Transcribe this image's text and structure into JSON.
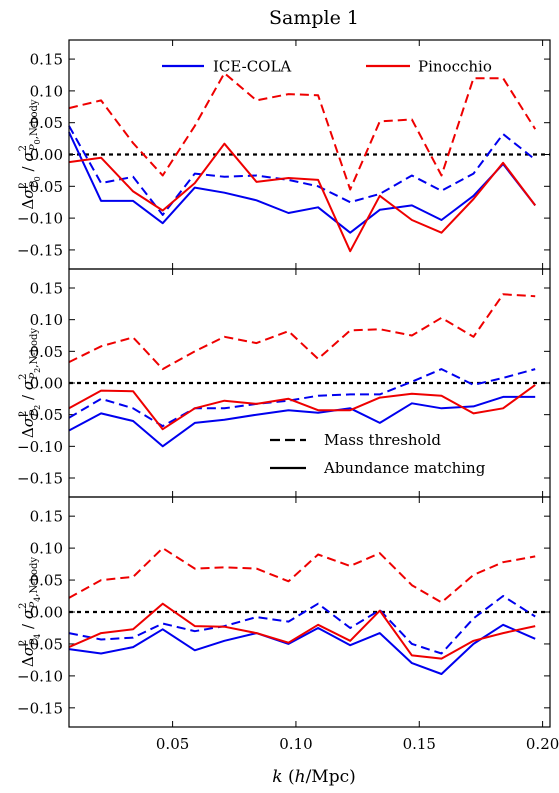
{
  "title": "Sample 1",
  "xlabel": "k (h/Mpc)",
  "legend_codes": [
    {
      "label": "ICE-COLA",
      "color": "#0000ee"
    },
    {
      "label": "Pinocchio",
      "color": "#ee0000"
    }
  ],
  "legend_methods": [
    {
      "label": "Mass threshold",
      "style": "dashed"
    },
    {
      "label": "Abundance matching",
      "style": "solid"
    }
  ],
  "chart_data": [
    {
      "type": "line",
      "ylabel": "Δσ²_{P0} / σ²_{P0,N-body}",
      "xlim": [
        0.008,
        0.203
      ],
      "ylim": [
        -0.18,
        0.18
      ],
      "xticks": [
        0.05,
        0.1,
        0.15,
        0.2
      ],
      "yticks": [
        -0.15,
        -0.1,
        -0.05,
        0.0,
        0.05,
        0.1,
        0.15
      ],
      "reference_line": 0.0,
      "x": [
        0.008,
        0.021,
        0.034,
        0.046,
        0.059,
        0.071,
        0.084,
        0.097,
        0.109,
        0.122,
        0.134,
        0.147,
        0.159,
        0.172,
        0.184,
        0.197
      ],
      "series": [
        {
          "name": "ICE-COLA Mass threshold",
          "color": "#0000ee",
          "style": "dashed",
          "values": [
            0.045,
            -0.045,
            -0.035,
            -0.095,
            -0.03,
            -0.035,
            -0.033,
            -0.04,
            -0.05,
            -0.075,
            -0.062,
            -0.033,
            -0.057,
            -0.03,
            0.032,
            -0.008
          ]
        },
        {
          "name": "ICE-COLA Abundance matching",
          "color": "#0000ee",
          "style": "solid",
          "values": [
            0.035,
            -0.073,
            -0.073,
            -0.108,
            -0.052,
            -0.06,
            -0.072,
            -0.092,
            -0.083,
            -0.123,
            -0.087,
            -0.08,
            -0.103,
            -0.065,
            -0.015,
            -0.08
          ]
        },
        {
          "name": "Pinocchio Mass threshold",
          "color": "#ee0000",
          "style": "dashed",
          "values": [
            0.073,
            0.085,
            0.018,
            -0.033,
            0.045,
            0.128,
            0.085,
            0.095,
            0.093,
            -0.055,
            0.052,
            0.055,
            -0.033,
            0.12,
            0.12,
            0.04
          ]
        },
        {
          "name": "Pinocchio Abundance matching",
          "color": "#ee0000",
          "style": "solid",
          "values": [
            -0.012,
            -0.005,
            -0.058,
            -0.088,
            -0.045,
            0.017,
            -0.043,
            -0.037,
            -0.04,
            -0.152,
            -0.065,
            -0.103,
            -0.123,
            -0.07,
            -0.013,
            -0.08
          ]
        }
      ]
    },
    {
      "type": "line",
      "ylabel": "Δσ²_{P2} / σ²_{P2,N-body}",
      "xlim": [
        0.008,
        0.203
      ],
      "ylim": [
        -0.18,
        0.18
      ],
      "xticks": [
        0.05,
        0.1,
        0.15,
        0.2
      ],
      "yticks": [
        -0.15,
        -0.1,
        -0.05,
        0.0,
        0.05,
        0.1,
        0.15
      ],
      "reference_line": 0.0,
      "x": [
        0.008,
        0.021,
        0.034,
        0.046,
        0.059,
        0.071,
        0.084,
        0.097,
        0.109,
        0.122,
        0.134,
        0.147,
        0.159,
        0.172,
        0.184,
        0.197
      ],
      "series": [
        {
          "name": "ICE-COLA Mass threshold",
          "color": "#0000ee",
          "style": "dashed",
          "values": [
            -0.055,
            -0.025,
            -0.04,
            -0.068,
            -0.04,
            -0.04,
            -0.033,
            -0.028,
            -0.02,
            -0.018,
            -0.018,
            0.002,
            0.022,
            -0.003,
            0.008,
            0.022
          ]
        },
        {
          "name": "ICE-COLA Abundance matching",
          "color": "#0000ee",
          "style": "solid",
          "values": [
            -0.075,
            -0.048,
            -0.06,
            -0.1,
            -0.063,
            -0.058,
            -0.05,
            -0.043,
            -0.047,
            -0.04,
            -0.063,
            -0.032,
            -0.04,
            -0.037,
            -0.022,
            -0.022
          ]
        },
        {
          "name": "Pinocchio Mass threshold",
          "color": "#ee0000",
          "style": "dashed",
          "values": [
            0.033,
            0.058,
            0.072,
            0.022,
            0.05,
            0.073,
            0.063,
            0.082,
            0.038,
            0.083,
            0.085,
            0.075,
            0.103,
            0.073,
            0.14,
            0.137
          ]
        },
        {
          "name": "Pinocchio Abundance matching",
          "color": "#ee0000",
          "style": "solid",
          "values": [
            -0.04,
            -0.012,
            -0.013,
            -0.073,
            -0.04,
            -0.028,
            -0.033,
            -0.025,
            -0.043,
            -0.043,
            -0.023,
            -0.017,
            -0.02,
            -0.048,
            -0.04,
            -0.003
          ]
        }
      ]
    },
    {
      "type": "line",
      "ylabel": "Δσ²_{P4} / σ²_{P4,N-body}",
      "xlim": [
        0.008,
        0.203
      ],
      "ylim": [
        -0.18,
        0.18
      ],
      "xticks": [
        0.05,
        0.1,
        0.15,
        0.2
      ],
      "yticks": [
        -0.15,
        -0.1,
        -0.05,
        0.0,
        0.05,
        0.1,
        0.15
      ],
      "reference_line": 0.0,
      "x": [
        0.008,
        0.021,
        0.034,
        0.046,
        0.059,
        0.071,
        0.084,
        0.097,
        0.109,
        0.122,
        0.134,
        0.147,
        0.159,
        0.172,
        0.184,
        0.197
      ],
      "series": [
        {
          "name": "ICE-COLA Mass threshold",
          "color": "#0000ee",
          "style": "dashed",
          "values": [
            -0.033,
            -0.043,
            -0.04,
            -0.018,
            -0.03,
            -0.022,
            -0.008,
            -0.015,
            0.013,
            -0.025,
            0.003,
            -0.05,
            -0.065,
            -0.01,
            0.025,
            -0.007
          ]
        },
        {
          "name": "ICE-COLA Abundance matching",
          "color": "#0000ee",
          "style": "solid",
          "values": [
            -0.058,
            -0.065,
            -0.055,
            -0.027,
            -0.06,
            -0.045,
            -0.033,
            -0.05,
            -0.025,
            -0.052,
            -0.033,
            -0.08,
            -0.097,
            -0.05,
            -0.02,
            -0.042
          ]
        },
        {
          "name": "Pinocchio Mass threshold",
          "color": "#ee0000",
          "style": "dashed",
          "values": [
            0.022,
            0.05,
            0.055,
            0.1,
            0.068,
            0.07,
            0.068,
            0.048,
            0.09,
            0.072,
            0.092,
            0.042,
            0.015,
            0.058,
            0.078,
            0.087
          ]
        },
        {
          "name": "Pinocchio Abundance matching",
          "color": "#ee0000",
          "style": "solid",
          "values": [
            -0.055,
            -0.033,
            -0.027,
            0.013,
            -0.022,
            -0.023,
            -0.033,
            -0.048,
            -0.02,
            -0.045,
            0.002,
            -0.068,
            -0.073,
            -0.045,
            -0.033,
            -0.022
          ]
        }
      ]
    }
  ]
}
